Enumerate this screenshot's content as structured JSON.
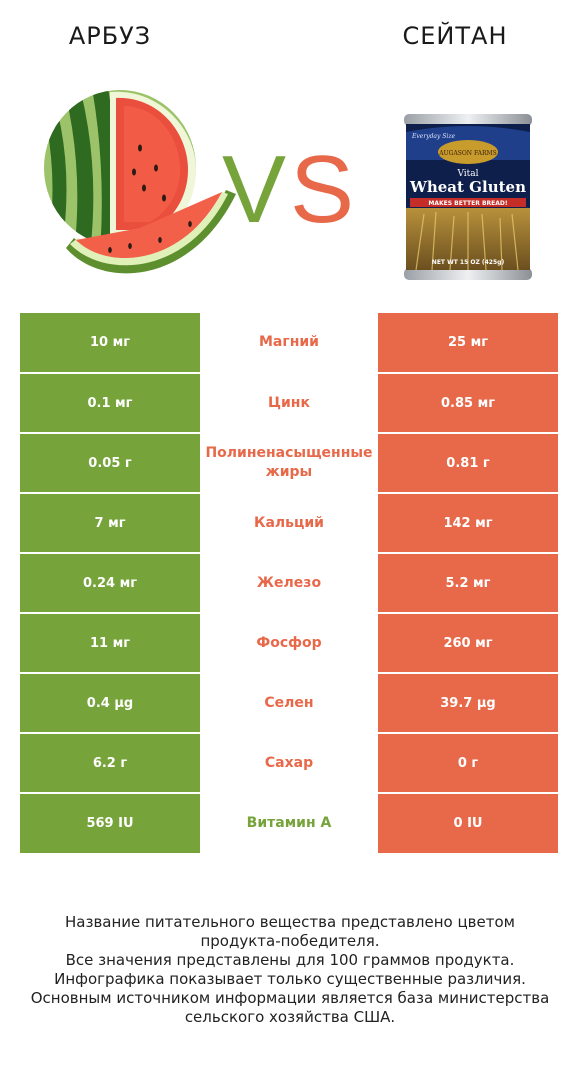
{
  "left_product": {
    "name": "АРБУЗ"
  },
  "right_product": {
    "name": "СЕЙТАН",
    "label": {
      "brand": "AUGASON FARMS",
      "tagline": "Everyday Size",
      "title_line1": "Vital",
      "title_line2": "Wheat Gluten",
      "band": "MAKES BETTER BREAD!",
      "net": "NET WT 15 OZ (425g)"
    }
  },
  "vs_text": "VS",
  "colors": {
    "left": "#76a33a",
    "right": "#e8694a"
  },
  "rows": [
    {
      "nutrient": "Магний",
      "left": "10 мг",
      "right": "25 мг",
      "winner": "right"
    },
    {
      "nutrient": "Цинк",
      "left": "0.1 мг",
      "right": "0.85 мг",
      "winner": "right"
    },
    {
      "nutrient": "Полиненасыщенные жиры",
      "left": "0.05 г",
      "right": "0.81 г",
      "winner": "right"
    },
    {
      "nutrient": "Кальций",
      "left": "7 мг",
      "right": "142 мг",
      "winner": "right"
    },
    {
      "nutrient": "Железо",
      "left": "0.24 мг",
      "right": "5.2 мг",
      "winner": "right"
    },
    {
      "nutrient": "Фосфор",
      "left": "11 мг",
      "right": "260 мг",
      "winner": "right"
    },
    {
      "nutrient": "Селен",
      "left": "0.4 µg",
      "right": "39.7 µg",
      "winner": "right"
    },
    {
      "nutrient": "Сахар",
      "left": "6.2 г",
      "right": "0 г",
      "winner": "right"
    },
    {
      "nutrient": "Витамин A",
      "left": "569 IU",
      "right": "0 IU",
      "winner": "left"
    }
  ],
  "footer": [
    "Название питательного вещества представлено цветом",
    "продукта-победителя.",
    "Все значения представлены для 100 граммов продукта.",
    "Инфографика показывает только существенные различия.",
    "Основным источником информации является база министерства",
    "сельского хозяйства США."
  ]
}
